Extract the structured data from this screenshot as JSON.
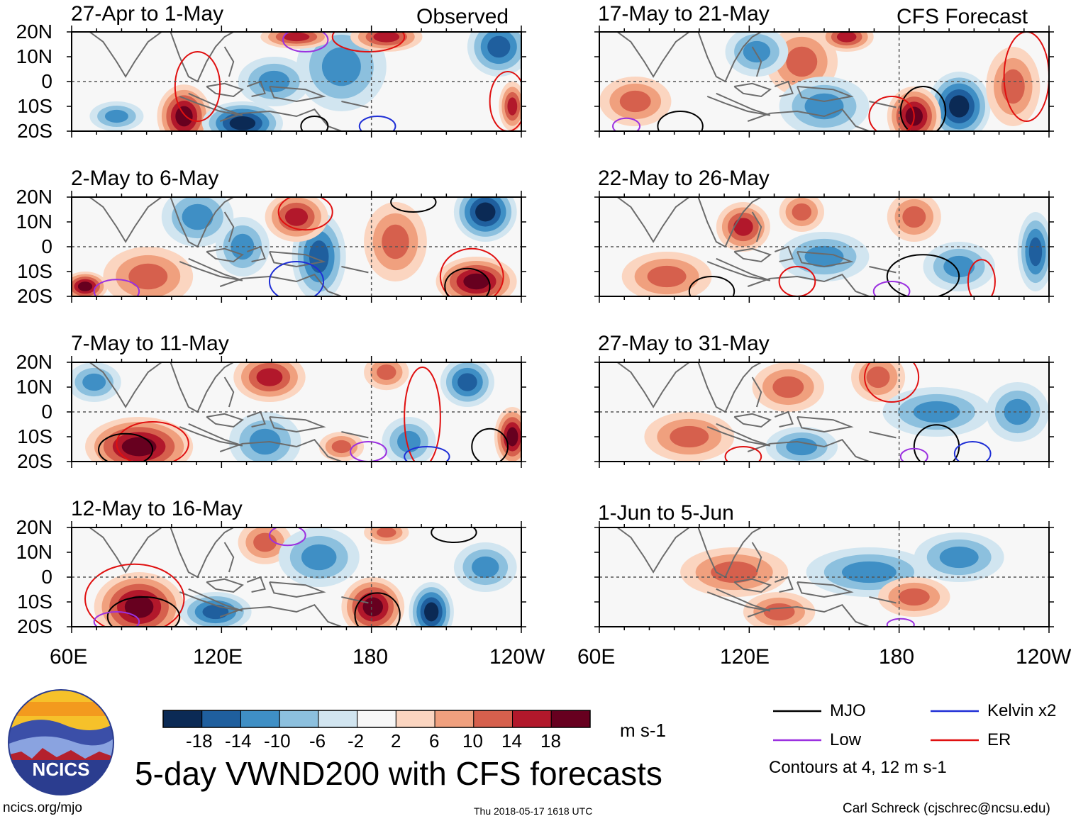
{
  "labels": {
    "observed": "Observed",
    "forecast": "CFS Forecast",
    "main_title": "5-day VWND200 with CFS forecasts",
    "units": "m s-1",
    "contours_note": "Contours at 4, 12 m s-1",
    "site": "ncics.org/mjo",
    "timestamp": "Thu 2018-05-17 1618 UTC",
    "author": "Carl Schreck (cjschrec@ncsu.edu)",
    "logo_text": "NCICS"
  },
  "axes": {
    "lat_labels": [
      "20N",
      "10N",
      "0",
      "10S",
      "20S"
    ],
    "lon_labels": [
      "60E",
      "120E",
      "180",
      "120W"
    ]
  },
  "panels": [
    {
      "period": "27-Apr to 1-May"
    },
    {
      "period": "2-May to 6-May"
    },
    {
      "period": "7-May to 11-May"
    },
    {
      "period": "12-May to 16-May"
    },
    {
      "period": "17-May to 21-May"
    },
    {
      "period": "22-May to 26-May"
    },
    {
      "period": "27-May to 31-May"
    },
    {
      "period": "1-Jun to 5-Jun"
    }
  ],
  "colorbar": {
    "ticks": [
      "-18",
      "-14",
      "-10",
      "-6",
      "-2",
      "2",
      "6",
      "10",
      "14",
      "18"
    ],
    "colors": [
      "#0b2a55",
      "#1f5f9e",
      "#3f8fc5",
      "#8cc0de",
      "#d1e5f0",
      "#f7f7f7",
      "#fbd5c0",
      "#f0a07e",
      "#d6604d",
      "#b2182b",
      "#67001f"
    ]
  },
  "legend": [
    {
      "label": "MJO",
      "color": "#000000"
    },
    {
      "label": "Kelvin x2",
      "color": "#1f2fd6"
    },
    {
      "label": "Low",
      "color": "#9b30e0"
    },
    {
      "label": "ER",
      "color": "#e01010"
    }
  ]
}
